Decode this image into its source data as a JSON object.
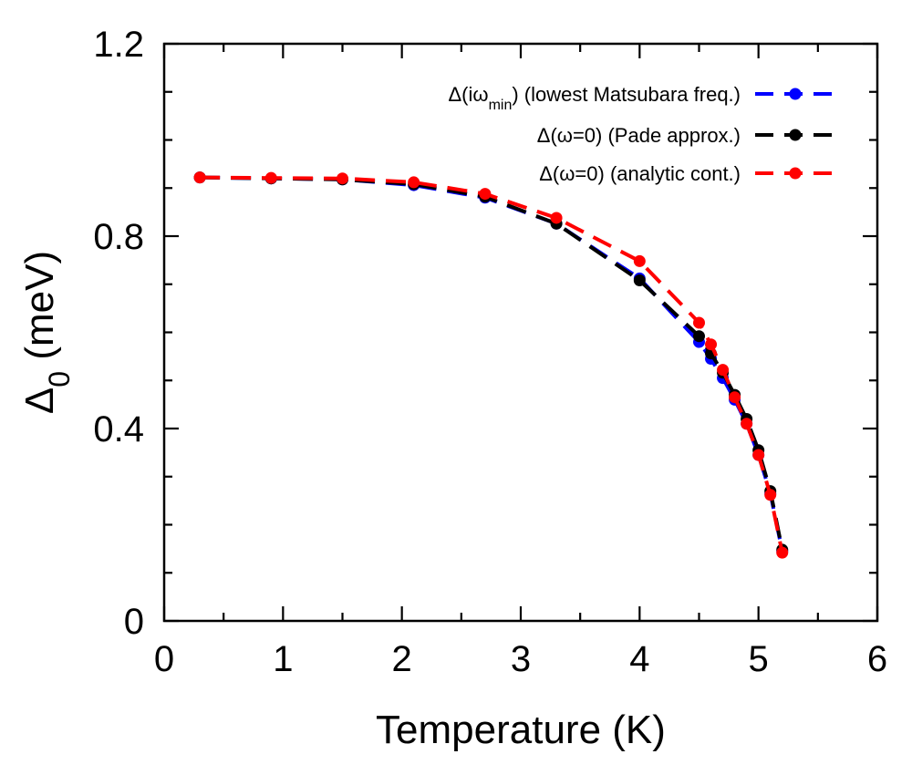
{
  "chart_data": {
    "type": "line",
    "xlabel": "Temperature (K)",
    "ylabel": {
      "main": "Δ",
      "sub": "0",
      "rest": " (meV)"
    },
    "xlim": [
      0,
      6
    ],
    "ylim": [
      0,
      1.2
    ],
    "xticks": [
      0,
      1,
      2,
      3,
      4,
      5,
      6
    ],
    "yticks": [
      0,
      0.4,
      0.8,
      1.2
    ],
    "xtick_labels": [
      "0",
      "1",
      "2",
      "3",
      "4",
      "5",
      "6"
    ],
    "ytick_labels": [
      "0",
      "0.4",
      "0.8",
      "1.2"
    ],
    "grid": false,
    "legend_position": "top-right",
    "series": [
      {
        "legend": {
          "pre": "Δ(iω",
          "sub": "min",
          "post": ") (lowest Matsubara freq.)"
        },
        "color": "#0000ff",
        "style": "dashed-with-markers",
        "x": [
          0.3,
          0.9,
          1.5,
          2.1,
          2.7,
          3.3,
          4.0,
          4.5,
          4.6,
          4.7,
          4.8,
          4.9,
          5.0,
          5.1,
          5.2
        ],
        "y": [
          0.922,
          0.92,
          0.918,
          0.906,
          0.88,
          0.826,
          0.712,
          0.58,
          0.545,
          0.505,
          0.46,
          0.41,
          0.345,
          0.265,
          0.145
        ]
      },
      {
        "legend": {
          "pre": "Δ(ω=0) (Pade approx.)",
          "sub": "",
          "post": ""
        },
        "color": "#000000",
        "style": "dashed-with-markers",
        "x": [
          0.3,
          0.9,
          1.5,
          2.1,
          2.7,
          3.3,
          4.0,
          4.5,
          4.6,
          4.7,
          4.8,
          4.9,
          5.0,
          5.1,
          5.2
        ],
        "y": [
          0.922,
          0.92,
          0.918,
          0.908,
          0.882,
          0.826,
          0.708,
          0.592,
          0.556,
          0.516,
          0.47,
          0.42,
          0.355,
          0.27,
          0.148
        ]
      },
      {
        "legend": {
          "pre": "Δ(ω=0) (analytic cont.)",
          "sub": "",
          "post": ""
        },
        "color": "#ff0000",
        "style": "dashed-with-markers",
        "x": [
          0.3,
          0.9,
          1.5,
          2.1,
          2.7,
          3.3,
          4.0,
          4.5,
          4.6,
          4.7,
          4.8,
          4.9,
          5.0,
          5.1,
          5.2
        ],
        "y": [
          0.922,
          0.921,
          0.92,
          0.912,
          0.888,
          0.838,
          0.748,
          0.62,
          0.575,
          0.522,
          0.465,
          0.41,
          0.345,
          0.262,
          0.142
        ]
      }
    ]
  }
}
